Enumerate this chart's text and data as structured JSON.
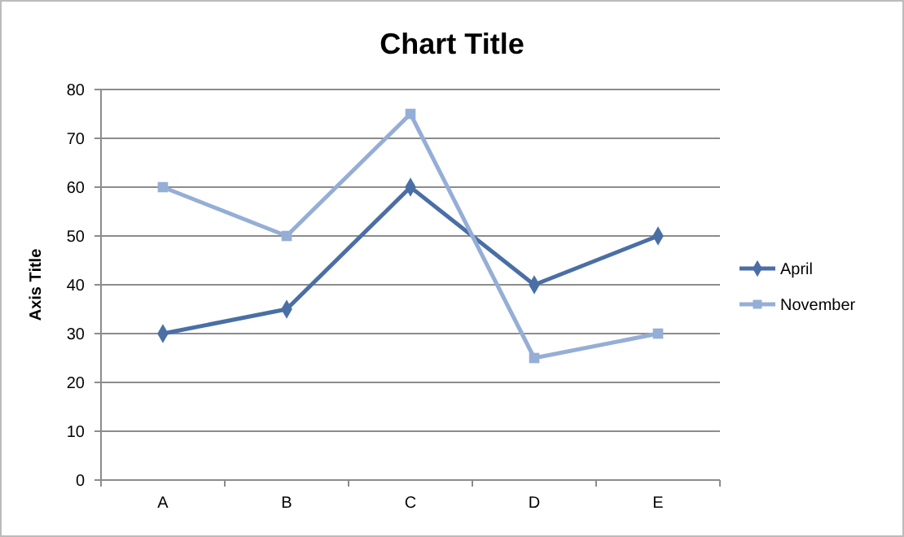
{
  "chart_data": {
    "type": "line",
    "title": "Chart Title",
    "ylabel": "Axis Title",
    "categories": [
      "A",
      "B",
      "C",
      "D",
      "E"
    ],
    "series": [
      {
        "name": "April",
        "color": "#4a6fa5",
        "marker": "diamond",
        "values": [
          30,
          35,
          60,
          40,
          50
        ]
      },
      {
        "name": "November",
        "color": "#95aed6",
        "marker": "square",
        "values": [
          60,
          50,
          75,
          25,
          30
        ]
      }
    ],
    "ylim": [
      0,
      80
    ],
    "yticks": [
      0,
      10,
      20,
      30,
      40,
      50,
      60,
      70,
      80
    ],
    "grid": "y",
    "legend": "right",
    "line_style": "solid"
  }
}
